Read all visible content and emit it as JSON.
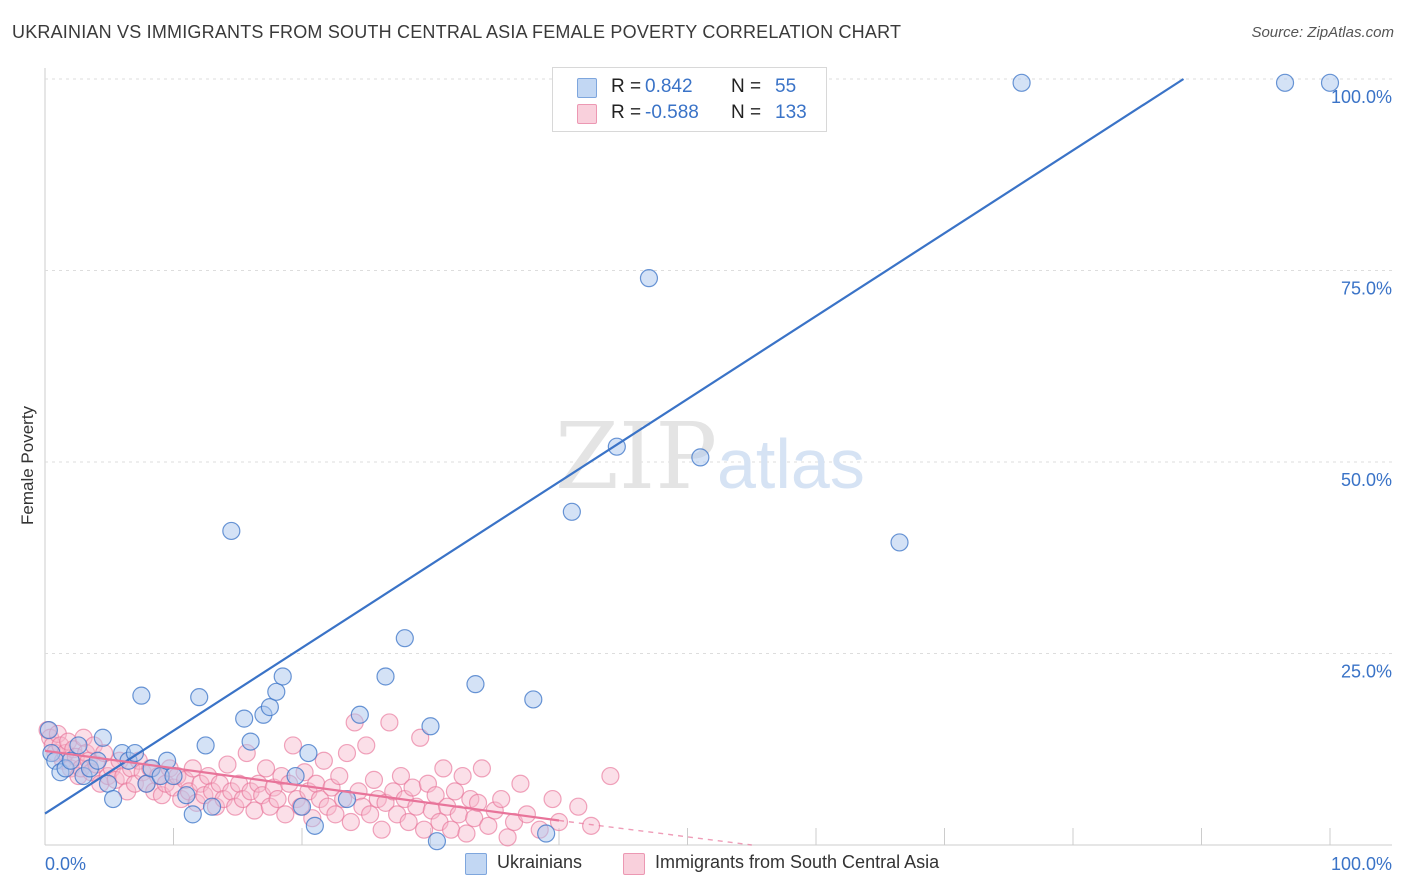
{
  "title": "UKRAINIAN VS IMMIGRANTS FROM SOUTH CENTRAL ASIA FEMALE POVERTY CORRELATION CHART",
  "source": "Source: ZipAtlas.com",
  "legend": {
    "rows": [
      {
        "r_label": "R =",
        "r_value": "0.842",
        "n_label": "N =",
        "n_value": "55",
        "color": "#a9c6ee"
      },
      {
        "r_label": "R =",
        "r_value": "-0.588",
        "n_label": "N =",
        "n_value": "133",
        "color": "#f6b8cb"
      }
    ]
  },
  "bottom_legend": {
    "series_a": "Ukrainians",
    "series_b": "Immigrants from South Central Asia"
  },
  "chart_data": {
    "type": "scatter",
    "title": "UKRAINIAN VS IMMIGRANTS FROM SOUTH CENTRAL ASIA FEMALE POVERTY CORRELATION CHART",
    "xlabel": "",
    "ylabel": "Female Poverty",
    "xlim": [
      0,
      100
    ],
    "ylim": [
      0,
      100
    ],
    "x_tick_labels": [
      "0.0%",
      "100.0%"
    ],
    "y_tick_labels": [
      "25.0%",
      "50.0%",
      "75.0%",
      "100.0%"
    ],
    "y_ticks": [
      25,
      50,
      75,
      100
    ],
    "grid": "horizontal dashed",
    "legend_position": "top-center",
    "watermark": "ZIPatlas",
    "series": [
      {
        "name": "Ukrainians",
        "color": "#3a73c7",
        "fill": "#a9c6ee",
        "trend": {
          "x1": 0,
          "y1": 4.1,
          "x2": 88.6,
          "y2": 100
        },
        "points": [
          [
            0.3,
            15
          ],
          [
            0.5,
            12
          ],
          [
            0.8,
            11
          ],
          [
            1.2,
            9.5
          ],
          [
            1.6,
            10
          ],
          [
            2.0,
            11
          ],
          [
            2.6,
            13
          ],
          [
            3.0,
            9
          ],
          [
            3.5,
            10
          ],
          [
            4.1,
            11
          ],
          [
            4.5,
            14
          ],
          [
            4.9,
            8
          ],
          [
            5.3,
            6
          ],
          [
            6.0,
            12
          ],
          [
            6.5,
            11
          ],
          [
            7.0,
            12
          ],
          [
            7.5,
            19.5
          ],
          [
            7.9,
            8
          ],
          [
            8.3,
            10
          ],
          [
            9.0,
            9
          ],
          [
            9.5,
            11
          ],
          [
            10.0,
            9
          ],
          [
            11.0,
            6.5
          ],
          [
            11.5,
            4
          ],
          [
            12.0,
            19.3
          ],
          [
            12.5,
            13
          ],
          [
            13.0,
            5
          ],
          [
            14.5,
            41
          ],
          [
            15.5,
            16.5
          ],
          [
            16.0,
            13.5
          ],
          [
            17.0,
            17
          ],
          [
            17.5,
            18
          ],
          [
            18.0,
            20
          ],
          [
            18.5,
            22
          ],
          [
            19.5,
            9
          ],
          [
            20.0,
            5
          ],
          [
            20.5,
            12
          ],
          [
            21.0,
            2.5
          ],
          [
            23.5,
            6
          ],
          [
            24.5,
            17
          ],
          [
            26.5,
            22
          ],
          [
            28.0,
            27
          ],
          [
            30.0,
            15.5
          ],
          [
            30.5,
            0.5
          ],
          [
            33.5,
            21
          ],
          [
            38.0,
            19
          ],
          [
            39.0,
            1.5
          ],
          [
            41.0,
            43.5
          ],
          [
            44.5,
            52
          ],
          [
            47.0,
            74
          ],
          [
            51.0,
            50.6
          ],
          [
            66.5,
            39.5
          ],
          [
            76.0,
            99.5
          ],
          [
            96.5,
            99.5
          ],
          [
            100,
            99.5
          ]
        ]
      },
      {
        "name": "Immigrants from South Central Asia",
        "color": "#e8749a",
        "fill": "#f6b8cb",
        "trend": {
          "x1": 0,
          "y1": 12.3,
          "x2": 40,
          "y2": 3.2
        },
        "trend_dashed": {
          "x1": 40,
          "y1": 3.2,
          "x2": 55,
          "y2": 0
        },
        "points": [
          [
            0.2,
            15
          ],
          [
            0.4,
            14
          ],
          [
            0.6,
            13
          ],
          [
            0.8,
            12
          ],
          [
            1.0,
            14.5
          ],
          [
            1.2,
            13
          ],
          [
            1.4,
            11
          ],
          [
            1.6,
            12
          ],
          [
            1.8,
            13.5
          ],
          [
            2.0,
            10
          ],
          [
            2.2,
            12.5
          ],
          [
            2.4,
            11.5
          ],
          [
            2.6,
            9
          ],
          [
            2.8,
            10
          ],
          [
            3.0,
            14
          ],
          [
            3.2,
            12
          ],
          [
            3.4,
            11
          ],
          [
            3.6,
            9.5
          ],
          [
            3.8,
            13
          ],
          [
            4.0,
            10.5
          ],
          [
            4.3,
            8
          ],
          [
            4.6,
            12
          ],
          [
            4.9,
            9
          ],
          [
            5.2,
            10
          ],
          [
            5.5,
            8.5
          ],
          [
            5.8,
            11
          ],
          [
            6.1,
            9
          ],
          [
            6.4,
            7
          ],
          [
            6.7,
            10
          ],
          [
            7.0,
            8
          ],
          [
            7.3,
            11
          ],
          [
            7.6,
            9.5
          ],
          [
            7.9,
            8
          ],
          [
            8.2,
            10
          ],
          [
            8.5,
            7
          ],
          [
            8.8,
            9
          ],
          [
            9.1,
            6.5
          ],
          [
            9.4,
            8
          ],
          [
            9.7,
            10
          ],
          [
            10.0,
            7.5
          ],
          [
            10.3,
            9
          ],
          [
            10.6,
            6
          ],
          [
            10.9,
            8.5
          ],
          [
            11.2,
            7
          ],
          [
            11.5,
            10
          ],
          [
            11.8,
            5.5
          ],
          [
            12.1,
            8
          ],
          [
            12.4,
            6.5
          ],
          [
            12.7,
            9
          ],
          [
            13.0,
            7
          ],
          [
            13.3,
            5
          ],
          [
            13.6,
            8
          ],
          [
            13.9,
            6
          ],
          [
            14.2,
            10.5
          ],
          [
            14.5,
            7
          ],
          [
            14.8,
            5
          ],
          [
            15.1,
            8
          ],
          [
            15.4,
            6
          ],
          [
            15.7,
            12
          ],
          [
            16.0,
            7
          ],
          [
            16.3,
            4.5
          ],
          [
            16.6,
            8
          ],
          [
            16.9,
            6.5
          ],
          [
            17.2,
            10
          ],
          [
            17.5,
            5
          ],
          [
            17.8,
            7.5
          ],
          [
            18.1,
            6
          ],
          [
            18.4,
            9
          ],
          [
            18.7,
            4
          ],
          [
            19.0,
            8
          ],
          [
            19.3,
            13
          ],
          [
            19.6,
            6
          ],
          [
            19.9,
            5
          ],
          [
            20.2,
            9.5
          ],
          [
            20.5,
            7
          ],
          [
            20.8,
            3.5
          ],
          [
            21.1,
            8
          ],
          [
            21.4,
            6
          ],
          [
            21.7,
            11
          ],
          [
            22.0,
            5
          ],
          [
            22.3,
            7.5
          ],
          [
            22.6,
            4
          ],
          [
            22.9,
            9
          ],
          [
            23.2,
            6
          ],
          [
            23.5,
            12
          ],
          [
            23.8,
            3
          ],
          [
            24.1,
            16
          ],
          [
            24.4,
            7
          ],
          [
            24.7,
            5
          ],
          [
            25.0,
            13
          ],
          [
            25.3,
            4
          ],
          [
            25.6,
            8.5
          ],
          [
            25.9,
            6
          ],
          [
            26.2,
            2
          ],
          [
            26.5,
            5.5
          ],
          [
            26.8,
            16
          ],
          [
            27.1,
            7
          ],
          [
            27.4,
            4
          ],
          [
            27.7,
            9
          ],
          [
            28.0,
            6
          ],
          [
            28.3,
            3
          ],
          [
            28.6,
            7.5
          ],
          [
            28.9,
            5
          ],
          [
            29.2,
            14
          ],
          [
            29.5,
            2
          ],
          [
            29.8,
            8
          ],
          [
            30.1,
            4.5
          ],
          [
            30.4,
            6.5
          ],
          [
            30.7,
            3
          ],
          [
            31.0,
            10
          ],
          [
            31.3,
            5
          ],
          [
            31.6,
            2
          ],
          [
            31.9,
            7
          ],
          [
            32.2,
            4
          ],
          [
            32.5,
            9
          ],
          [
            32.8,
            1.5
          ],
          [
            33.1,
            6
          ],
          [
            33.4,
            3.5
          ],
          [
            33.7,
            5.5
          ],
          [
            34.0,
            10
          ],
          [
            34.5,
            2.5
          ],
          [
            35.0,
            4.5
          ],
          [
            35.5,
            6
          ],
          [
            36.0,
            1
          ],
          [
            36.5,
            3
          ],
          [
            37.0,
            8
          ],
          [
            37.5,
            4
          ],
          [
            38.5,
            2
          ],
          [
            39.5,
            6
          ],
          [
            40.0,
            3
          ],
          [
            41.5,
            5
          ],
          [
            42.5,
            2.5
          ],
          [
            44.0,
            9
          ]
        ]
      }
    ]
  }
}
